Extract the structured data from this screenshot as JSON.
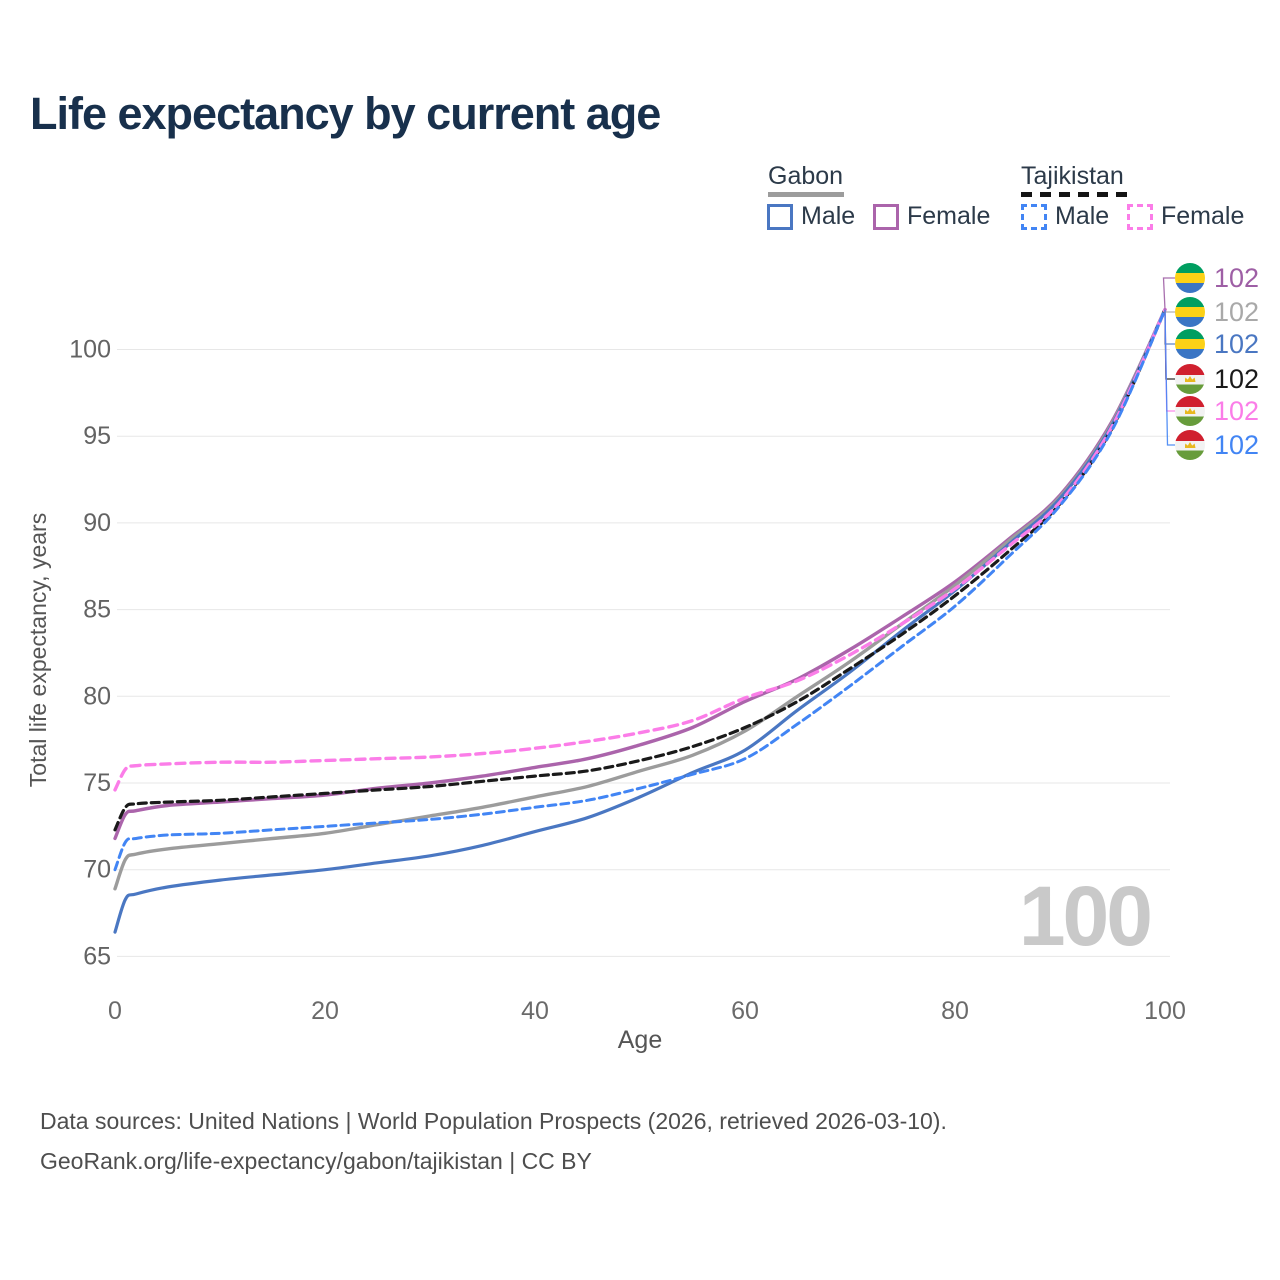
{
  "title": "Life expectancy by current age",
  "legend": {
    "gabon_label": "Gabon",
    "tajikistan_label": "Tajikistan",
    "gabon_male_label": "Male",
    "gabon_female_label": "Female",
    "tajikistan_male_label": "Male",
    "tajikistan_female_label": "Female"
  },
  "colors": {
    "title": "#18304c",
    "gabon_male": "#4a77c2",
    "gabon_female": "#ab64ab",
    "gabon_all": "#9c9c9c",
    "tajikistan_male": "#4285f4",
    "tajikistan_female": "#fb7de8",
    "tajikistan_all": "#1a1a1a",
    "grid": "#e7e7e7",
    "axis_text": "#636363",
    "watermark": "#c9c9c9"
  },
  "watermark": "100",
  "end_labels": [
    {
      "series": "Gabon Female",
      "flag": "gabon",
      "value": "102",
      "color": "#9e5fa5"
    },
    {
      "series": "Gabon Both sexes",
      "flag": "gabon",
      "value": "102",
      "color": "#a9a9a9"
    },
    {
      "series": "Gabon Male",
      "flag": "gabon",
      "value": "102",
      "color": "#4a77c2"
    },
    {
      "series": "Tajikistan Both sexes",
      "flag": "tajikistan",
      "value": "102",
      "color": "#1a1a1a"
    },
    {
      "series": "Tajikistan Female",
      "flag": "tajikistan",
      "value": "102",
      "color": "#fb7de8"
    },
    {
      "series": "Tajikistan Male",
      "flag": "tajikistan",
      "value": "102",
      "color": "#4285f4"
    }
  ],
  "footer": {
    "line1": "Data sources: United Nations | World Population Prospects (2026, retrieved 2026-03-10).",
    "line2": "GeoRank.org/life-expectancy/gabon/tajikistan | CC BY"
  },
  "chart_data": {
    "type": "line",
    "title": "Life expectancy by current age",
    "xlabel": "Age",
    "ylabel": "Total life expectancy, years",
    "xlim": [
      0,
      100
    ],
    "ylim": [
      65,
      103.5
    ],
    "x_ticks": [
      0,
      20,
      40,
      60,
      80,
      100
    ],
    "y_ticks": [
      65,
      70,
      75,
      80,
      85,
      90,
      95,
      100
    ],
    "grid": "horizontal-only",
    "legend_position": "top-right",
    "age_frame_shown": 100,
    "x": [
      0,
      1,
      2,
      5,
      10,
      15,
      20,
      25,
      30,
      35,
      40,
      45,
      50,
      55,
      60,
      65,
      70,
      75,
      80,
      85,
      90,
      95,
      100
    ],
    "series": [
      {
        "name": "Gabon Female",
        "country": "Gabon",
        "sex": "Female",
        "style": "solid",
        "color": "#ab64ab",
        "width": 3.4,
        "dash": null,
        "values": [
          71.8,
          73.2,
          73.4,
          73.7,
          73.9,
          74.1,
          74.3,
          74.7,
          75.0,
          75.4,
          75.9,
          76.4,
          77.2,
          78.2,
          79.7,
          81.0,
          82.7,
          84.6,
          86.6,
          89.0,
          91.6,
          95.9,
          102.3
        ]
      },
      {
        "name": "Gabon Both sexes",
        "country": "Gabon",
        "sex": "Both",
        "style": "solid",
        "color": "#9c9c9c",
        "width": 3.4,
        "dash": null,
        "values": [
          68.9,
          70.6,
          70.9,
          71.2,
          71.5,
          71.8,
          72.1,
          72.6,
          73.1,
          73.6,
          74.2,
          74.8,
          75.7,
          76.6,
          78.0,
          80.0,
          82.0,
          84.2,
          86.4,
          88.9,
          91.5,
          95.8,
          102.3
        ]
      },
      {
        "name": "Gabon Male",
        "country": "Gabon",
        "sex": "Male",
        "style": "solid",
        "color": "#4a77c2",
        "width": 3.2,
        "dash": null,
        "values": [
          66.4,
          68.3,
          68.6,
          69.0,
          69.4,
          69.7,
          70.0,
          70.4,
          70.8,
          71.4,
          72.2,
          73.0,
          74.2,
          75.6,
          76.9,
          79.2,
          81.4,
          83.8,
          86.1,
          88.7,
          91.4,
          95.7,
          102.3
        ]
      },
      {
        "name": "Tajikistan Both sexes",
        "country": "Tajikistan",
        "sex": "Both",
        "style": "dashed",
        "color": "#1a1a1a",
        "width": 3.2,
        "dash": [
          8,
          5
        ],
        "values": [
          72.3,
          73.6,
          73.8,
          73.9,
          74.0,
          74.2,
          74.4,
          74.6,
          74.8,
          75.1,
          75.4,
          75.7,
          76.3,
          77.1,
          78.2,
          79.7,
          81.6,
          83.6,
          85.8,
          88.3,
          91.1,
          95.5,
          102.3
        ]
      },
      {
        "name": "Tajikistan Female",
        "country": "Tajikistan",
        "sex": "Female",
        "style": "dashed",
        "color": "#fb7de8",
        "width": 3.4,
        "dash": [
          9,
          6
        ],
        "values": [
          74.6,
          75.8,
          76.0,
          76.1,
          76.2,
          76.2,
          76.3,
          76.4,
          76.5,
          76.7,
          77.0,
          77.4,
          77.9,
          78.6,
          79.9,
          80.9,
          82.4,
          84.2,
          86.2,
          88.6,
          91.2,
          95.6,
          102.3
        ]
      },
      {
        "name": "Tajikistan Male",
        "country": "Tajikistan",
        "sex": "Male",
        "style": "dashed",
        "color": "#4285f4",
        "width": 3.0,
        "dash": [
          8,
          5
        ],
        "values": [
          70.0,
          71.6,
          71.8,
          72.0,
          72.1,
          72.3,
          72.5,
          72.7,
          72.9,
          73.2,
          73.6,
          74.0,
          74.7,
          75.5,
          76.4,
          78.4,
          80.6,
          82.9,
          85.2,
          88.0,
          91.0,
          95.4,
          102.3
        ]
      }
    ],
    "end_value_label": "102"
  }
}
